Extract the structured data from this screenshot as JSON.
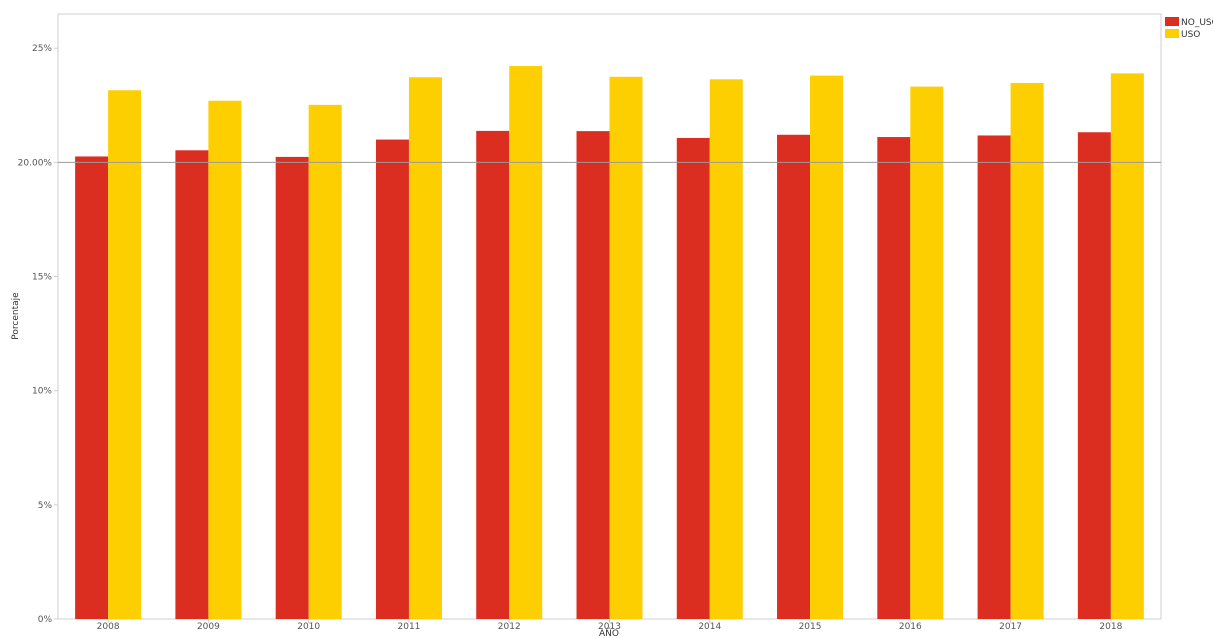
{
  "chart_data": {
    "type": "bar",
    "xlabel": "AÑO",
    "ylabel": "Porcentaje",
    "ylim": [
      0,
      0.265
    ],
    "y_ticks": [
      {
        "value": 0,
        "label": "0%"
      },
      {
        "value": 0.05,
        "label": "5%"
      },
      {
        "value": 0.1,
        "label": "10%"
      },
      {
        "value": 0.15,
        "label": "15%"
      },
      {
        "value": 0.2,
        "label": "20.00%"
      },
      {
        "value": 0.25,
        "label": "25%"
      }
    ],
    "reference_line": {
      "value": 0.2
    },
    "categories": [
      "2008",
      "2009",
      "2010",
      "2011",
      "2012",
      "2013",
      "2014",
      "2015",
      "2016",
      "2017",
      "2018"
    ],
    "series": [
      {
        "name": "NO_USO",
        "color": "#dc2d21",
        "values": [
          0.2026,
          0.2053,
          0.2024,
          0.21,
          0.2138,
          0.2137,
          0.2107,
          0.2121,
          0.2111,
          0.2118,
          0.2132
        ]
      },
      {
        "name": "USO",
        "color": "#fecf00",
        "values": [
          0.2316,
          0.227,
          0.2252,
          0.2373,
          0.2422,
          0.2375,
          0.2364,
          0.238,
          0.2332,
          0.2348,
          0.239
        ]
      }
    ],
    "legend_position": "top-right",
    "grid": false
  }
}
